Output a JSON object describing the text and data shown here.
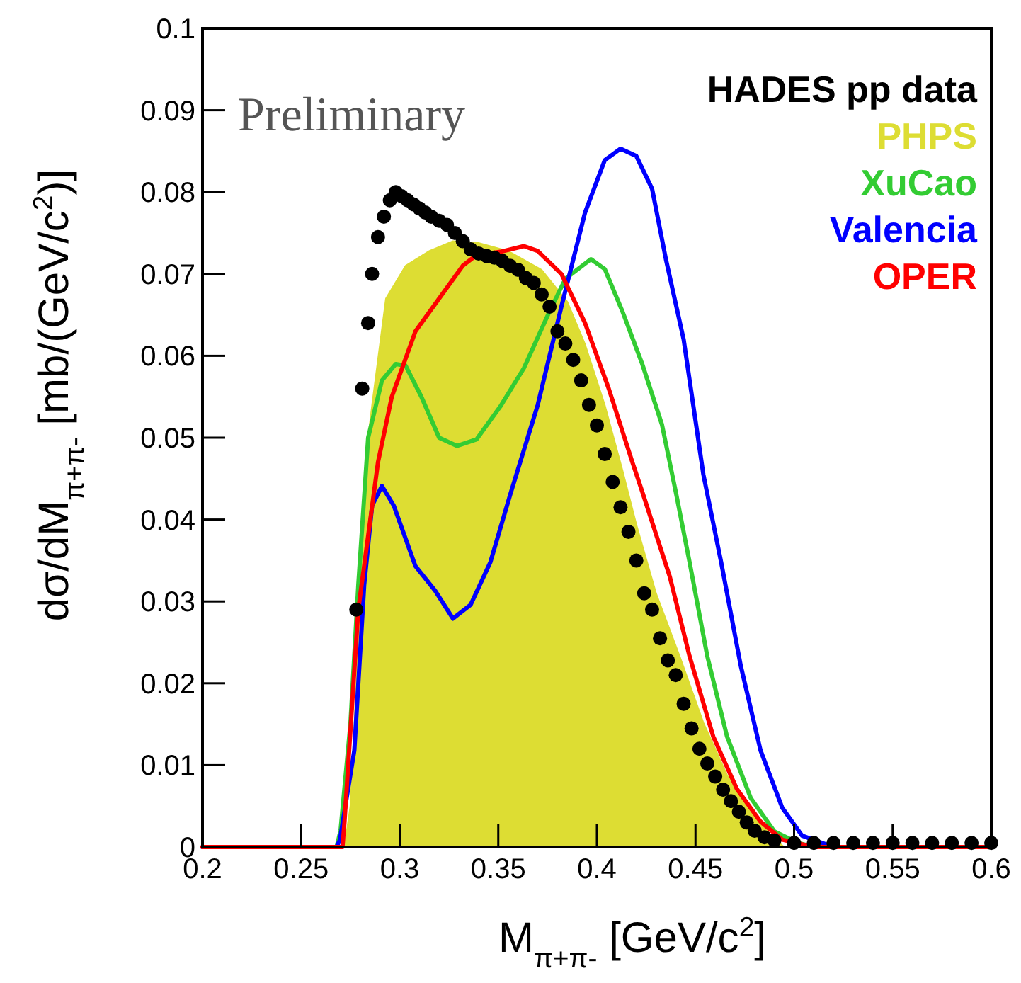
{
  "chart_data": {
    "type": "line",
    "xlabel": "M$_{π+π-}$ [GeV/c$^{2}$]",
    "ylabel": "dσ/dM$_{π+π-}$ [mb/(GeV/c$^{2}$)]",
    "annotations": [
      "Preliminary"
    ],
    "xlim": [
      0.2,
      0.6
    ],
    "xticks": [
      0.2,
      0.25,
      0.3,
      0.35,
      0.4,
      0.45,
      0.5,
      0.55,
      0.6
    ],
    "ylim": [
      0,
      0.1
    ],
    "yticks": [
      0,
      0.01,
      0.02,
      0.03,
      0.04,
      0.05,
      0.06,
      0.07,
      0.08,
      0.09,
      0.1
    ],
    "grid": false,
    "legend": "top right",
    "line_style": "solid",
    "series": [
      {
        "name": "PHPS",
        "type": "area",
        "color": "#dddd33",
        "x": [
          0.272,
          0.275,
          0.278,
          0.281,
          0.284,
          0.286,
          0.293,
          0.303,
          0.315,
          0.327,
          0.34,
          0.355,
          0.372,
          0.385,
          0.394,
          0.404,
          0.413,
          0.42,
          0.43,
          0.442,
          0.454,
          0.466,
          0.478,
          0.49,
          0.495
        ],
        "values": [
          0,
          0.005,
          0.02,
          0.038,
          0.05,
          0.054,
          0.067,
          0.071,
          0.0728,
          0.074,
          0.0738,
          0.0728,
          0.0705,
          0.0666,
          0.0614,
          0.054,
          0.046,
          0.0394,
          0.031,
          0.0233,
          0.0152,
          0.0088,
          0.0043,
          0.001,
          0
        ]
      },
      {
        "name": "XuCao",
        "color": "#33cc33",
        "x": [
          0.2,
          0.268,
          0.27,
          0.275,
          0.279,
          0.284,
          0.291,
          0.298,
          0.303,
          0.311,
          0.32,
          0.329,
          0.339,
          0.351,
          0.363,
          0.375,
          0.384,
          0.397,
          0.404,
          0.413,
          0.423,
          0.433,
          0.44,
          0.447,
          0.456,
          0.466,
          0.478,
          0.49,
          0.502,
          0.51,
          0.6
        ],
        "values": [
          0,
          0,
          0.002,
          0.015,
          0.032,
          0.05,
          0.057,
          0.059,
          0.0588,
          0.055,
          0.05,
          0.049,
          0.0498,
          0.0538,
          0.0585,
          0.0649,
          0.0694,
          0.0718,
          0.0706,
          0.0654,
          0.059,
          0.0516,
          0.0434,
          0.0348,
          0.0233,
          0.0135,
          0.006,
          0.0019,
          0.0005,
          0,
          0
        ]
      },
      {
        "name": "Valencia",
        "color": "#0000ff",
        "x": [
          0.2,
          0.268,
          0.2697,
          0.277,
          0.282,
          0.286,
          0.291,
          0.297,
          0.308,
          0.318,
          0.327,
          0.336,
          0.346,
          0.356,
          0.37,
          0.382,
          0.394,
          0.404,
          0.412,
          0.42,
          0.428,
          0.435,
          0.444,
          0.454,
          0.463,
          0.473,
          0.483,
          0.494,
          0.504,
          0.52,
          0.6
        ],
        "values": [
          0,
          0,
          0.0009,
          0.0118,
          0.032,
          0.0417,
          0.0441,
          0.0417,
          0.0343,
          0.0313,
          0.0279,
          0.0296,
          0.0348,
          0.043,
          0.054,
          0.066,
          0.0775,
          0.0839,
          0.0853,
          0.0844,
          0.0804,
          0.0718,
          0.062,
          0.0455,
          0.0348,
          0.0221,
          0.0118,
          0.0048,
          0.0014,
          0,
          0
        ]
      },
      {
        "name": "OPER",
        "color": "#ff0000",
        "x": [
          0.2,
          0.271,
          0.272,
          0.279,
          0.289,
          0.296,
          0.308,
          0.32,
          0.332,
          0.339,
          0.351,
          0.363,
          0.37,
          0.382,
          0.394,
          0.406,
          0.418,
          0.423,
          0.437,
          0.447,
          0.459,
          0.471,
          0.483,
          0.494,
          0.51,
          0.6
        ],
        "values": [
          0,
          0,
          0.003,
          0.029,
          0.047,
          0.055,
          0.063,
          0.067,
          0.071,
          0.0723,
          0.0727,
          0.0734,
          0.0728,
          0.07,
          0.064,
          0.056,
          0.047,
          0.0434,
          0.033,
          0.0233,
          0.0135,
          0.0071,
          0.0031,
          0.0009,
          0,
          0
        ]
      },
      {
        "name": "HADES pp data",
        "type": "scatter",
        "marker": "circle",
        "color": "#000000",
        "x": [
          0.278,
          0.281,
          0.284,
          0.286,
          0.289,
          0.292,
          0.295,
          0.298,
          0.301,
          0.304,
          0.307,
          0.31,
          0.313,
          0.316,
          0.32,
          0.324,
          0.328,
          0.332,
          0.336,
          0.34,
          0.344,
          0.348,
          0.352,
          0.356,
          0.36,
          0.364,
          0.368,
          0.372,
          0.376,
          0.38,
          0.384,
          0.388,
          0.392,
          0.396,
          0.4,
          0.404,
          0.408,
          0.412,
          0.416,
          0.42,
          0.424,
          0.428,
          0.432,
          0.436,
          0.44,
          0.444,
          0.448,
          0.452,
          0.456,
          0.46,
          0.464,
          0.468,
          0.472,
          0.476,
          0.48,
          0.485,
          0.49,
          0.5,
          0.51,
          0.52,
          0.53,
          0.54,
          0.55,
          0.56,
          0.57,
          0.58,
          0.59,
          0.6
        ],
        "values": [
          0.029,
          0.056,
          0.064,
          0.07,
          0.0745,
          0.077,
          0.079,
          0.08,
          0.0795,
          0.079,
          0.0785,
          0.078,
          0.0775,
          0.077,
          0.0765,
          0.076,
          0.075,
          0.074,
          0.073,
          0.0725,
          0.0722,
          0.072,
          0.0716,
          0.071,
          0.0705,
          0.0695,
          0.0689,
          0.0675,
          0.066,
          0.063,
          0.0615,
          0.0595,
          0.057,
          0.054,
          0.0515,
          0.048,
          0.0446,
          0.0415,
          0.0385,
          0.035,
          0.031,
          0.029,
          0.0255,
          0.0228,
          0.021,
          0.0175,
          0.0145,
          0.012,
          0.0102,
          0.0086,
          0.007,
          0.0056,
          0.0043,
          0.003,
          0.002,
          0.0012,
          0.0008,
          0.0005,
          0.0005,
          0.0005,
          0.0005,
          0.0005,
          0.0005,
          0.0005,
          0.0005,
          0.0005,
          0.0005,
          0.0005
        ]
      }
    ]
  }
}
